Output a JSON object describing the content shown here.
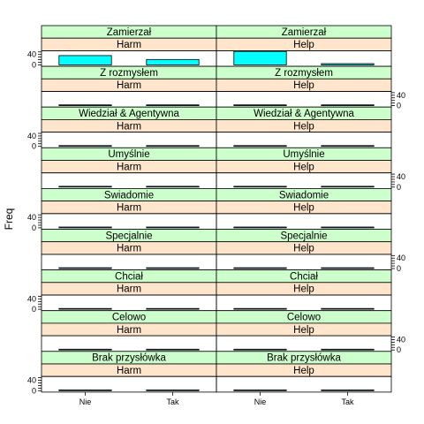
{
  "chart_data": {
    "type": "bar",
    "ylabel": "Freq",
    "xlabel": "",
    "categories": [
      "Nie",
      "Tak"
    ],
    "ylim": [
      0,
      50
    ],
    "y_ticks": [
      0,
      40
    ],
    "columns": [
      "Harm",
      "Help"
    ],
    "rows": [
      "Zamierzał",
      "Z rozmysłem",
      "Wiedział & Agentywna",
      "Umyślnie",
      "Swiadomie",
      "Specjalnie",
      "Chciał",
      "Celowo",
      "Brak przysłówka"
    ],
    "panels": [
      {
        "row": "Zamierzał",
        "column": "Harm",
        "values": [
          36,
          21
        ]
      },
      {
        "row": "Zamierzał",
        "column": "Help",
        "values": [
          52,
          5
        ]
      },
      {
        "row": "Z rozmysłem",
        "column": "Harm",
        "values": [
          0,
          0
        ]
      },
      {
        "row": "Z rozmysłem",
        "column": "Help",
        "values": [
          0,
          0
        ]
      },
      {
        "row": "Wiedział & Agentywna",
        "column": "Harm",
        "values": [
          0,
          0
        ]
      },
      {
        "row": "Wiedział & Agentywna",
        "column": "Help",
        "values": [
          0,
          0
        ]
      },
      {
        "row": "Umyślnie",
        "column": "Harm",
        "values": [
          0,
          0
        ]
      },
      {
        "row": "Umyślnie",
        "column": "Help",
        "values": [
          0,
          0
        ]
      },
      {
        "row": "Swiadomie",
        "column": "Harm",
        "values": [
          0,
          0
        ]
      },
      {
        "row": "Swiadomie",
        "column": "Help",
        "values": [
          0,
          0
        ]
      },
      {
        "row": "Specjalnie",
        "column": "Harm",
        "values": [
          0,
          0
        ]
      },
      {
        "row": "Specjalnie",
        "column": "Help",
        "values": [
          0,
          0
        ]
      },
      {
        "row": "Chciał",
        "column": "Harm",
        "values": [
          0,
          0
        ]
      },
      {
        "row": "Chciał",
        "column": "Help",
        "values": [
          0,
          0
        ]
      },
      {
        "row": "Celowo",
        "column": "Harm",
        "values": [
          0,
          0
        ]
      },
      {
        "row": "Celowo",
        "column": "Help",
        "values": [
          0,
          0
        ]
      },
      {
        "row": "Brak przysłówka",
        "column": "Harm",
        "values": [
          0,
          0
        ]
      },
      {
        "row": "Brak przysłówka",
        "column": "Help",
        "values": [
          0,
          0
        ]
      }
    ],
    "colors": {
      "bar_fill": "#00ffff",
      "row_strip": "#ccffcc",
      "column_strip": "#ffe5cc",
      "border": "#000000"
    },
    "grid": false
  }
}
